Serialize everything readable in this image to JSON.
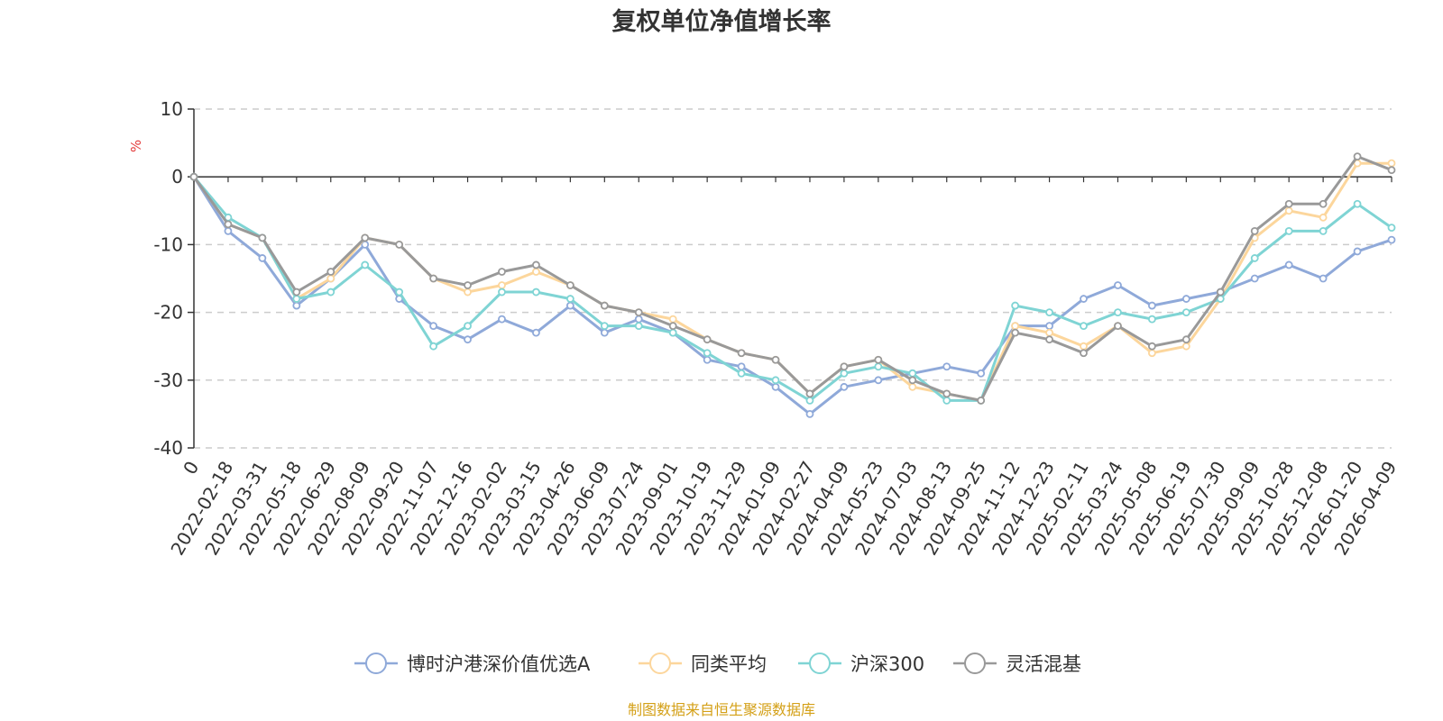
{
  "chart_data": {
    "type": "line",
    "title": "复权单位净值增长率",
    "ylabel": "%",
    "xlabel": "",
    "ylim": [
      -40,
      10
    ],
    "yticks": [
      10,
      0,
      -10,
      -20,
      -30,
      -40
    ],
    "grid": true,
    "legend_position": "bottom-center",
    "categories": [
      "0",
      "2022-02-18",
      "2022-03-31",
      "2022-05-18",
      "2022-06-29",
      "2022-08-09",
      "2022-09-20",
      "2022-11-07",
      "2022-12-16",
      "2023-02-02",
      "2023-03-15",
      "2023-04-26",
      "2023-06-09",
      "2023-07-24",
      "2023-09-01",
      "2023-10-19",
      "2023-11-29",
      "2024-01-09",
      "2024-02-27",
      "2024-04-09",
      "2024-05-23",
      "2024-07-03",
      "2024-08-13",
      "2024-09-25",
      "2024-11-12",
      "2024-12-23",
      "2025-02-11",
      "2025-03-24",
      "2025-05-08",
      "2025-06-19",
      "2025-07-30",
      "2025-09-09",
      "2025-10-28",
      "2025-12-08",
      "2026-01-20",
      "2026-04-09"
    ],
    "series": [
      {
        "name": "博时沪港深价值优选A",
        "color": "#8fa9d9",
        "values": [
          0,
          -8,
          -12,
          -19,
          -15,
          -10,
          -18,
          -22,
          -24,
          -21,
          -23,
          -19,
          -23,
          -21,
          -23,
          -27,
          -28,
          -31,
          -35,
          -31,
          -30,
          -29,
          -28,
          -29,
          -22,
          -22,
          -18,
          -16,
          -19,
          -18,
          -17,
          -15,
          -13,
          -15,
          -11,
          -9.3
        ]
      },
      {
        "name": "同类平均",
        "color": "#fcd69c",
        "values": [
          0,
          -7,
          -9,
          -18,
          -15,
          -9,
          -10,
          -15,
          -17,
          -16,
          -14,
          -16,
          -19,
          -20,
          -21,
          -24,
          -26,
          -27,
          -32,
          -28,
          -27,
          -31,
          -32,
          -33,
          -22,
          -23,
          -25,
          -22,
          -26,
          -25,
          -18,
          -9,
          -5,
          -6,
          2,
          2
        ]
      },
      {
        "name": "沪深300",
        "color": "#7fd4d4",
        "values": [
          0,
          -6,
          -9,
          -18,
          -17,
          -13,
          -17,
          -25,
          -22,
          -17,
          -17,
          -18,
          -22,
          -22,
          -23,
          -26,
          -29,
          -30,
          -33,
          -29,
          -28,
          -29,
          -33,
          -33,
          -19,
          -20,
          -22,
          -20,
          -21,
          -20,
          -18,
          -12,
          -8,
          -8,
          -4,
          -7.5
        ]
      },
      {
        "name": "灵活混基",
        "color": "#999999",
        "values": [
          0,
          -7,
          -9,
          -17,
          -14,
          -9,
          -10,
          -15,
          -16,
          -14,
          -13,
          -16,
          -19,
          -20,
          -22,
          -24,
          -26,
          -27,
          -32,
          -28,
          -27,
          -30,
          -32,
          -33,
          -23,
          -24,
          -26,
          -22,
          -25,
          -24,
          -17,
          -8,
          -4,
          -4,
          3,
          1
        ]
      }
    ]
  },
  "footer": {
    "source": "制图数据来自恒生聚源数据库"
  },
  "colors": {
    "ylabel": "#e43c3c",
    "source": "#d4a017"
  }
}
